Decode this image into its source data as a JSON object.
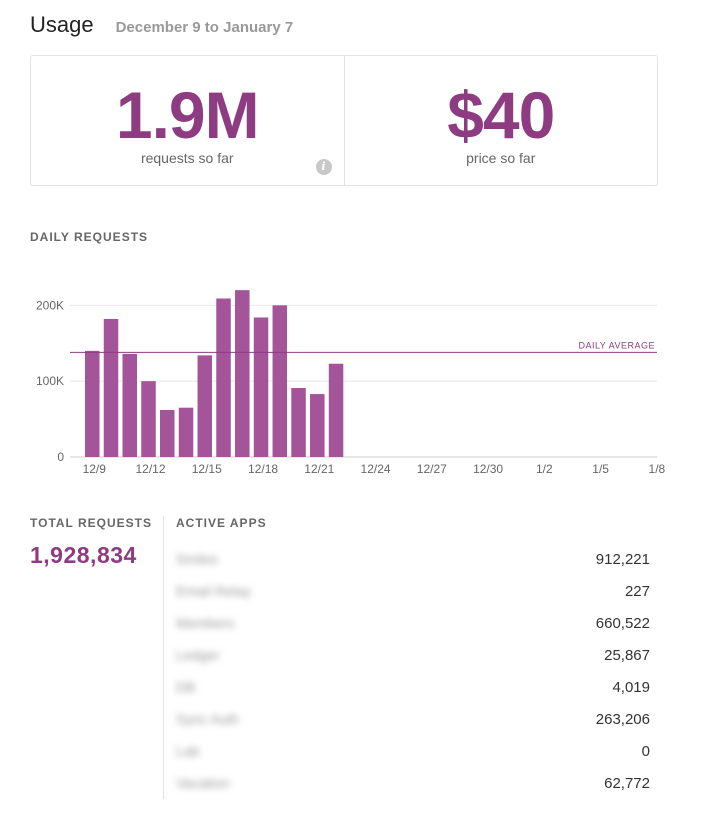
{
  "header": {
    "title": "Usage",
    "date_range": "December 9 to January 7"
  },
  "stats": {
    "requests_value": "1.9M",
    "requests_label": "requests so far",
    "price_value": "$40",
    "price_label": "price so far",
    "info_icon": "info-icon"
  },
  "daily_section": {
    "label": "DAILY REQUESTS"
  },
  "chart_data": {
    "type": "bar",
    "title": "",
    "xlabel": "",
    "ylabel": "",
    "categories": [
      "12/9",
      "12/10",
      "12/11",
      "12/12",
      "12/13",
      "12/14",
      "12/15",
      "12/16",
      "12/17",
      "12/18",
      "12/19",
      "12/20",
      "12/21",
      "12/22",
      "12/23",
      "12/24",
      "12/25",
      "12/26",
      "12/27",
      "12/28",
      "12/29",
      "12/30",
      "12/31",
      "1/1",
      "1/2",
      "1/3",
      "1/4",
      "1/5",
      "1/6",
      "1/7",
      "1/8"
    ],
    "values": [
      140000,
      182000,
      136000,
      100000,
      62000,
      65000,
      134000,
      209000,
      220000,
      184000,
      200000,
      91000,
      83000,
      123000,
      null,
      null,
      null,
      null,
      null,
      null,
      null,
      null,
      null,
      null,
      null,
      null,
      null,
      null,
      null,
      null,
      null
    ],
    "x_tick_labels": [
      "12/9",
      "12/12",
      "12/15",
      "12/18",
      "12/21",
      "12/24",
      "12/27",
      "12/30",
      "1/2",
      "1/5",
      "1/8"
    ],
    "y_tick_labels": [
      "0",
      "100K",
      "200K"
    ],
    "y_ticks": [
      0,
      100000,
      200000
    ],
    "ylim": [
      0,
      240000
    ],
    "reference_line": {
      "label": "DAILY AVERAGE",
      "value": 138000
    },
    "grid": true,
    "bar_color": "#a45499",
    "line_color": "#8e3c82"
  },
  "totals": {
    "label": "TOTAL REQUESTS",
    "value": "1,928,834"
  },
  "apps": {
    "label": "ACTIVE APPS",
    "items": [
      {
        "name": "Smiles",
        "count": "912,221"
      },
      {
        "name": "Email Relay",
        "count": "227"
      },
      {
        "name": "Members",
        "count": "660,522"
      },
      {
        "name": "Ledger",
        "count": "25,867"
      },
      {
        "name": "DB",
        "count": "4,019"
      },
      {
        "name": "Sync Auth",
        "count": "263,206"
      },
      {
        "name": "Lab",
        "count": "0"
      },
      {
        "name": "Vacation",
        "count": "62,772"
      }
    ]
  },
  "colors": {
    "accent": "#8e3c82",
    "bar": "#a45499",
    "muted_text": "#999999",
    "border": "#e3e3e3"
  }
}
